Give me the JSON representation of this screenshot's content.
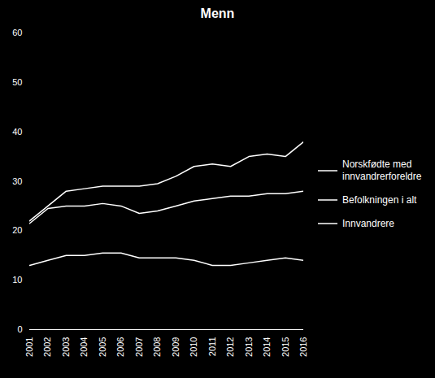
{
  "chart_data": {
    "type": "line",
    "title": "Menn",
    "x": [
      2001,
      2002,
      2003,
      2004,
      2005,
      2006,
      2007,
      2008,
      2009,
      2010,
      2011,
      2012,
      2013,
      2014,
      2015,
      2016
    ],
    "series": [
      {
        "name": "Norskfødte med\ninnvandrerforeldre",
        "color": "#ffffff",
        "values": [
          22,
          25,
          28,
          28.5,
          29,
          29,
          29,
          29.5,
          31,
          33,
          33.5,
          33,
          35,
          35.5,
          35,
          38
        ]
      },
      {
        "name": "Befolkningen i alt",
        "color": "#ffffff",
        "values": [
          21.5,
          24.5,
          25,
          25,
          25.5,
          25,
          23.5,
          24,
          25,
          26,
          26.5,
          27,
          27,
          27.5,
          27.5,
          28
        ]
      },
      {
        "name": "Innvandrere",
        "color": "#ffffff",
        "values": [
          13,
          14,
          15,
          15,
          15.5,
          15.5,
          14.5,
          14.5,
          14.5,
          14,
          13,
          13,
          13.5,
          14,
          14.5,
          14
        ]
      }
    ],
    "xlim": [
      2001,
      2016
    ],
    "xticks": [
      2001,
      2002,
      2003,
      2004,
      2005,
      2006,
      2007,
      2008,
      2009,
      2010,
      2011,
      2012,
      2013,
      2014,
      2015,
      2016
    ],
    "ylim": [
      0,
      60
    ],
    "yticks": [
      0,
      10,
      20,
      30,
      40,
      50,
      60
    ],
    "grid": false,
    "legend": "right"
  }
}
